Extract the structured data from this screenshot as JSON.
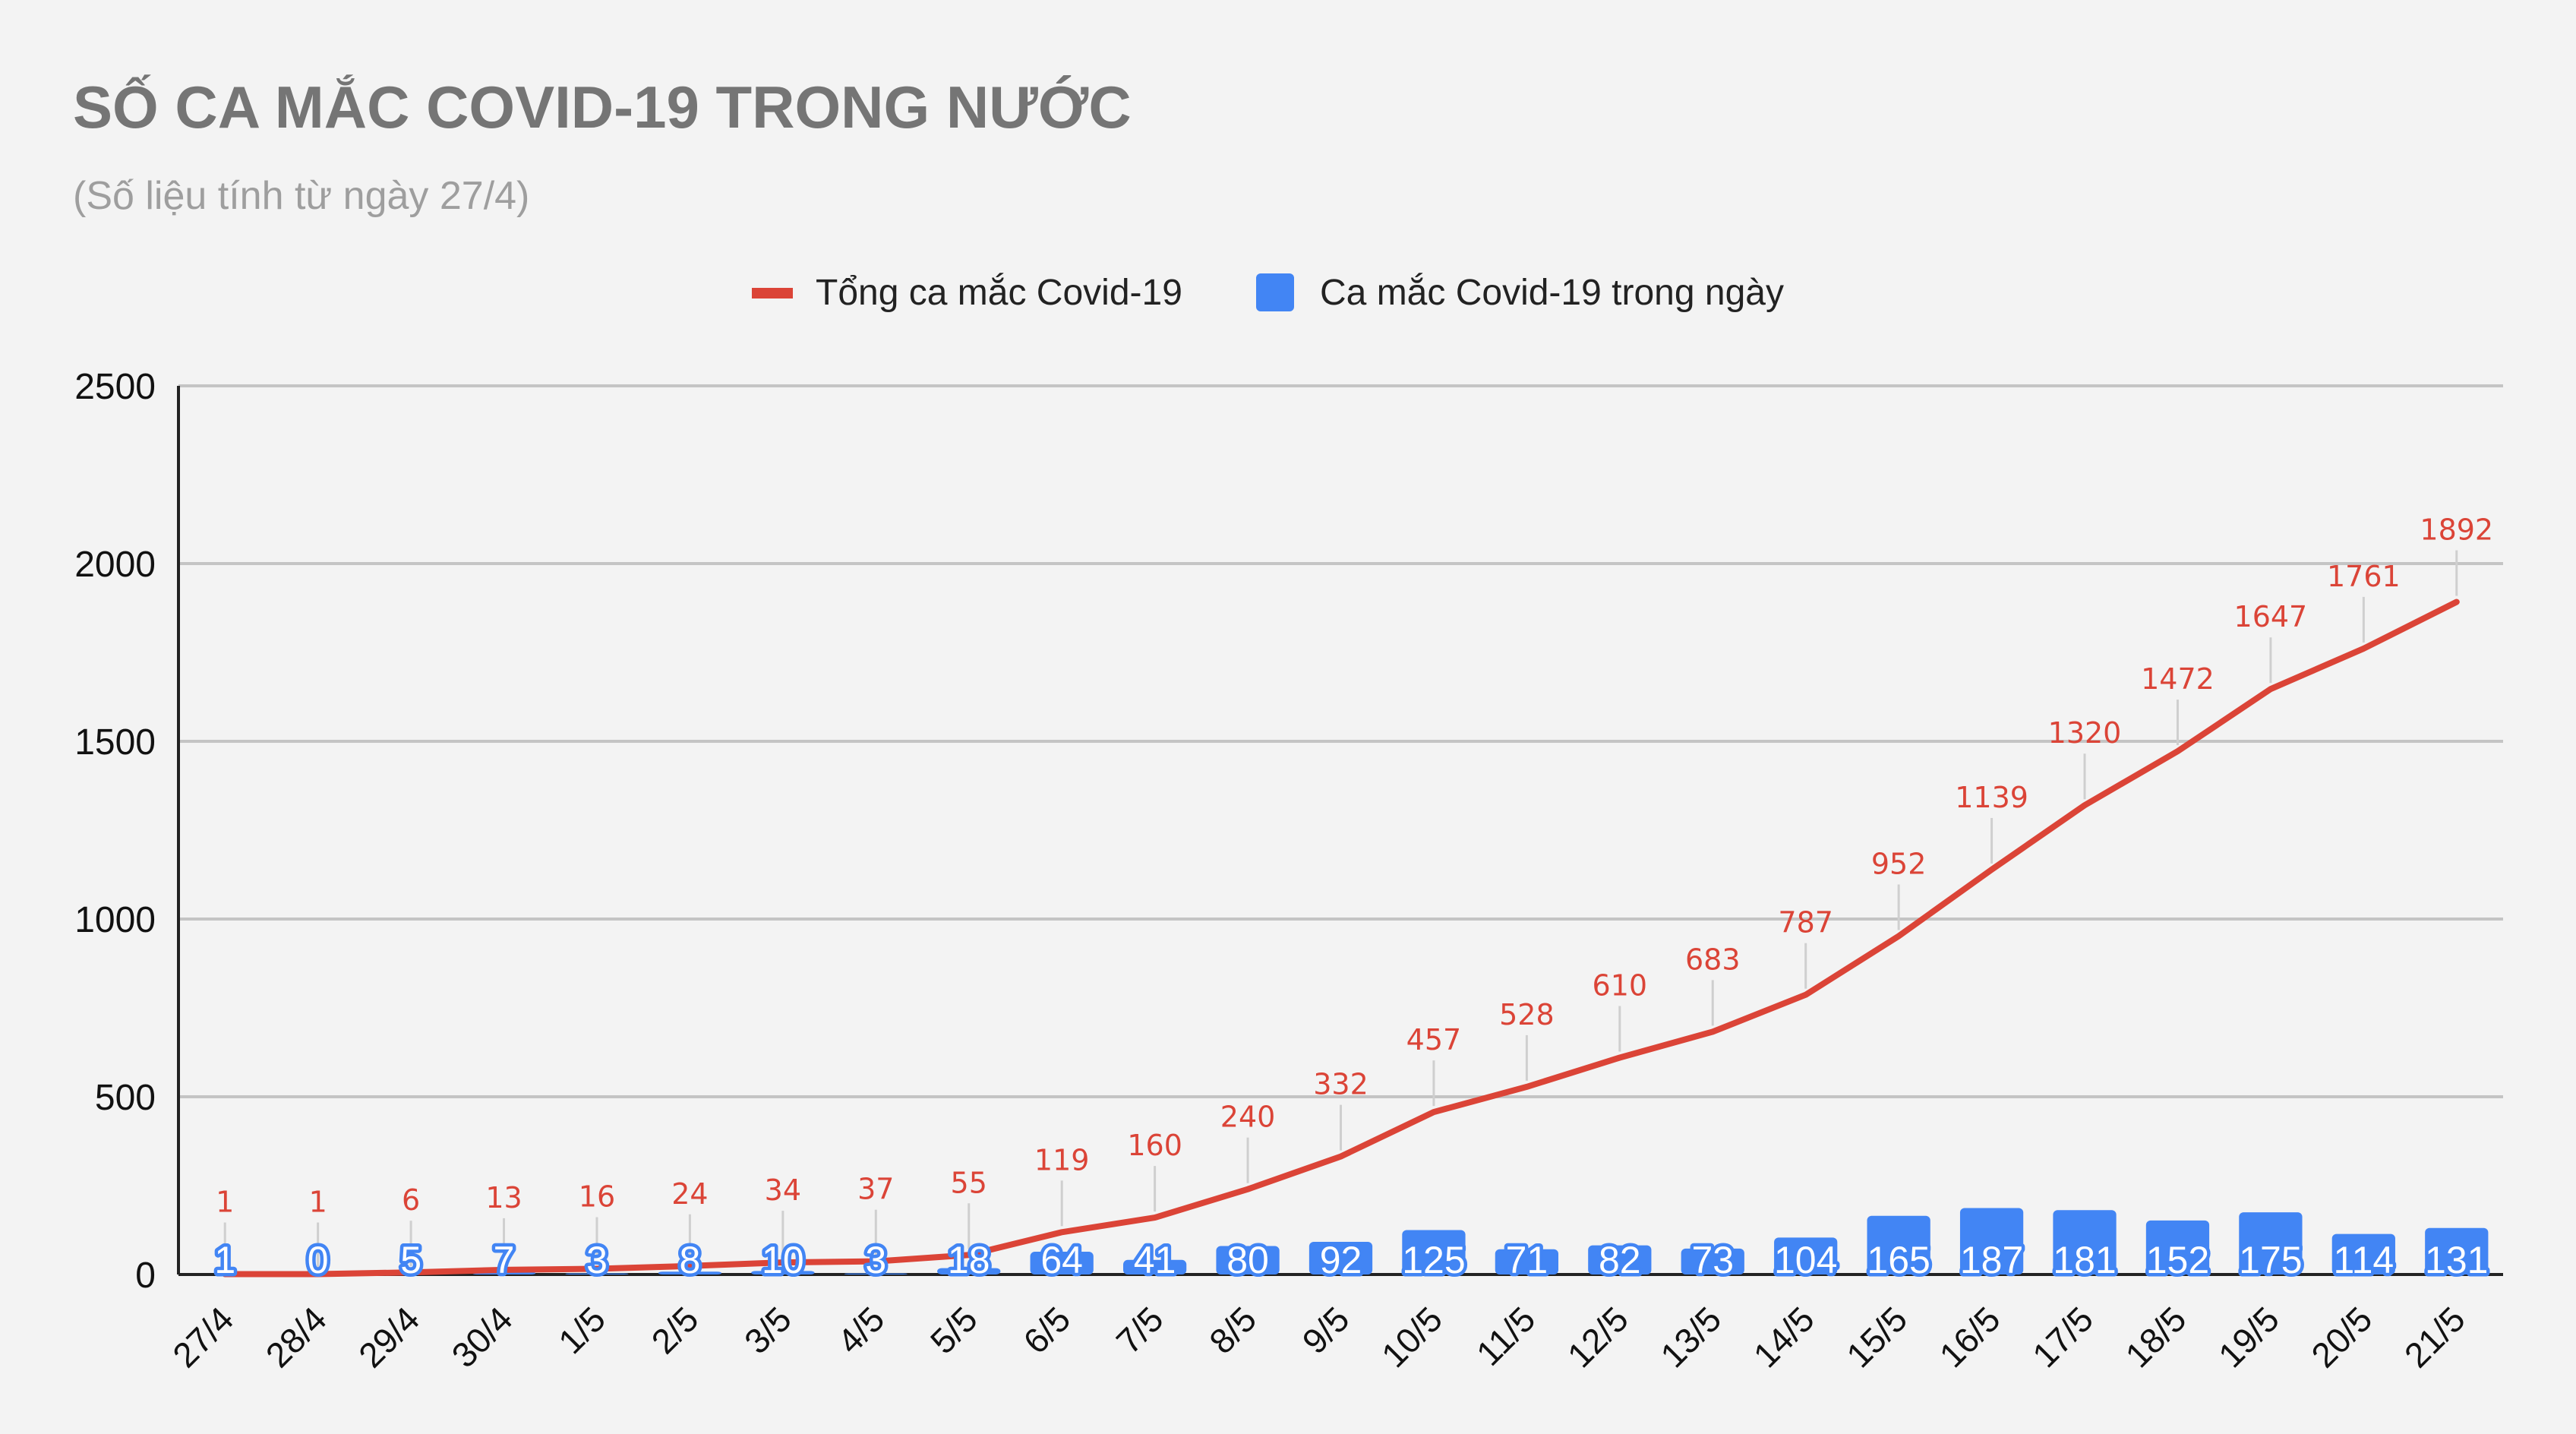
{
  "title": "SỐ CA MẮC COVID-19 TRONG NƯỚC",
  "subtitle": "(Số liệu tính từ ngày 27/4)",
  "colors": {
    "background": "#f3f3f3",
    "line": "#db4437",
    "bar": "#4285f4",
    "grid": "#c4c4c4",
    "title": "#757575",
    "subtitle": "#9e9e9e"
  },
  "chart_data": {
    "type": "bar+line",
    "title": "SỐ CA MẮC COVID-19 TRONG NƯỚC",
    "subtitle": "(Số liệu tính từ ngày 27/4)",
    "xlabel": "",
    "ylabel": "",
    "ylim": [
      0,
      2500
    ],
    "yticks": [
      0,
      500,
      1000,
      1500,
      2000,
      2500
    ],
    "grid": true,
    "legend_position": "top-center",
    "categories": [
      "27/4",
      "28/4",
      "29/4",
      "30/4",
      "1/5",
      "2/5",
      "3/5",
      "4/5",
      "5/5",
      "6/5",
      "7/5",
      "8/5",
      "9/5",
      "10/5",
      "11/5",
      "12/5",
      "13/5",
      "14/5",
      "15/5",
      "16/5",
      "17/5",
      "18/5",
      "19/5",
      "20/5",
      "21/5"
    ],
    "series": [
      {
        "name": "Tổng ca mắc Covid-19",
        "type": "line",
        "color": "#db4437",
        "values": [
          1,
          1,
          6,
          13,
          16,
          24,
          34,
          37,
          55,
          119,
          160,
          240,
          332,
          457,
          528,
          610,
          683,
          787,
          952,
          1139,
          1320,
          1472,
          1647,
          1761,
          1892
        ]
      },
      {
        "name": "Ca mắc Covid-19 trong ngày",
        "type": "bar",
        "color": "#4285f4",
        "values": [
          1,
          0,
          5,
          7,
          3,
          8,
          10,
          3,
          18,
          64,
          41,
          80,
          92,
          125,
          71,
          82,
          73,
          104,
          165,
          187,
          181,
          152,
          175,
          114,
          131
        ]
      }
    ]
  }
}
